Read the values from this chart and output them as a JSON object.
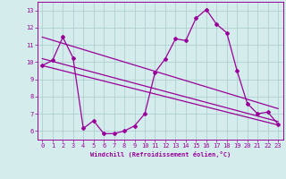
{
  "xlabel": "Windchill (Refroidissement éolien,°C)",
  "background_color": "#d4ecec",
  "line_color": "#990099",
  "grid_color": "#b0d0d0",
  "xlim": [
    -0.5,
    23.5
  ],
  "ylim": [
    5.5,
    13.5
  ],
  "yticks": [
    6,
    7,
    8,
    9,
    10,
    11,
    12,
    13
  ],
  "xticks": [
    0,
    1,
    2,
    3,
    4,
    5,
    6,
    7,
    8,
    9,
    10,
    11,
    12,
    13,
    14,
    15,
    16,
    17,
    18,
    19,
    20,
    21,
    22,
    23
  ],
  "main_line": {
    "x": [
      0,
      1,
      2,
      3,
      4,
      5,
      6,
      7,
      8,
      9,
      10,
      11,
      12,
      13,
      14,
      15,
      16,
      17,
      18,
      19,
      20,
      21,
      22,
      23
    ],
    "y": [
      9.8,
      10.1,
      11.45,
      10.25,
      6.15,
      6.6,
      5.85,
      5.85,
      6.0,
      6.3,
      7.0,
      9.4,
      10.2,
      11.35,
      11.25,
      12.55,
      13.05,
      12.2,
      11.7,
      9.5,
      7.6,
      7.0,
      7.1,
      6.4
    ]
  },
  "trend_lines": [
    {
      "x": [
        0,
        23
      ],
      "y": [
        11.45,
        7.3
      ]
    },
    {
      "x": [
        0,
        23
      ],
      "y": [
        10.2,
        6.55
      ]
    },
    {
      "x": [
        0,
        23
      ],
      "y": [
        9.8,
        6.35
      ]
    }
  ]
}
